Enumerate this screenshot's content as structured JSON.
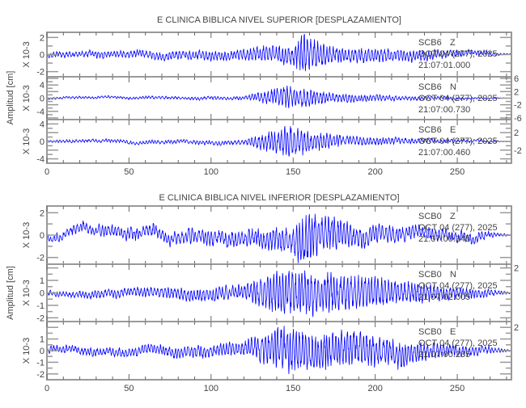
{
  "chart_data": [
    {
      "type": "line",
      "title": "E CLINICA BIBLICA NIVEL SUPERIOR [DESPLAZAMIENTO]",
      "ylabel": "Amplitud [cm]",
      "xlim": [
        0,
        283
      ],
      "xticks": [
        0,
        50,
        100,
        150,
        200,
        250
      ],
      "color": "#0000ff",
      "panels": [
        {
          "station": "SCB6",
          "component": "Z",
          "date": "OCT 04 (277), 2025",
          "time": "21:07:01.000",
          "scale_label": "X 10-3",
          "ylim": [
            -2.6,
            2.6
          ],
          "yticks": [
            -2,
            0,
            2
          ],
          "envelope": [
            [
              0,
              0.3
            ],
            [
              120,
              0.6
            ],
            [
              130,
              0.9
            ],
            [
              150,
              1.2
            ],
            [
              155,
              2.4
            ],
            [
              175,
              1.0
            ],
            [
              220,
              0.7
            ],
            [
              270,
              0.2
            ],
            [
              283,
              0.05
            ]
          ],
          "drift": 0.5,
          "seed": 11
        },
        {
          "station": "SCB6",
          "component": "N",
          "date": "OCT 04 (277), 2025",
          "time": "21:07:00.730",
          "scale_label": "X 10-3",
          "ylim": [
            -6.5,
            6.5
          ],
          "yticks": [
            -6,
            -4,
            -2,
            0,
            2,
            4,
            6
          ],
          "envelope": [
            [
              0,
              0.3
            ],
            [
              120,
              0.5
            ],
            [
              130,
              1.5
            ],
            [
              145,
              3.5
            ],
            [
              155,
              3.0
            ],
            [
              175,
              1.5
            ],
            [
              220,
              0.6
            ],
            [
              270,
              0.2
            ],
            [
              283,
              0.05
            ]
          ],
          "drift": 0.6,
          "seed": 23
        },
        {
          "station": "SCB6",
          "component": "E",
          "date": "OCT 04 (277), 2025",
          "time": "21:07:00.460",
          "scale_label": "X 10-3",
          "ylim": [
            -5,
            5
          ],
          "yticks": [
            -4,
            -2,
            0,
            2,
            4
          ],
          "envelope": [
            [
              0,
              0.3
            ],
            [
              120,
              0.5
            ],
            [
              130,
              1.8
            ],
            [
              148,
              3.8
            ],
            [
              160,
              2.5
            ],
            [
              180,
              1.2
            ],
            [
              220,
              0.6
            ],
            [
              270,
              0.2
            ],
            [
              283,
              0.05
            ]
          ],
          "drift": 0.6,
          "seed": 37
        }
      ]
    },
    {
      "type": "line",
      "title": "E CLINICA BIBLICA NIVEL INFERIOR [DESPLAZAMIENTO]",
      "ylabel": "Amplitud [cm]",
      "xlim": [
        0,
        283
      ],
      "xticks": [
        0,
        50,
        100,
        150,
        200,
        250
      ],
      "color": "#0000ff",
      "panels": [
        {
          "station": "SCB0",
          "component": "Z",
          "date": "OCT 04 (277), 2025",
          "time": "21:07:00.345",
          "scale_label": "X 10-3",
          "ylim": [
            -2.6,
            2.6
          ],
          "yticks": [
            -2,
            0,
            2
          ],
          "envelope": [
            [
              0,
              0.3
            ],
            [
              60,
              0.6
            ],
            [
              120,
              0.7
            ],
            [
              150,
              1.2
            ],
            [
              155,
              2.4
            ],
            [
              190,
              0.9
            ],
            [
              260,
              0.4
            ],
            [
              283,
              0.05
            ]
          ],
          "drift": 1.0,
          "seed": 51
        },
        {
          "station": "SCB0",
          "component": "N",
          "date": "OCT 04 (277), 2025",
          "time": "21:07:02.005",
          "scale_label": "X 10-3",
          "ylim": [
            -2.3,
            2.3
          ],
          "yticks": [
            -2,
            -1,
            0,
            1,
            2
          ],
          "envelope": [
            [
              0,
              0.2
            ],
            [
              60,
              0.4
            ],
            [
              120,
              0.6
            ],
            [
              140,
              1.8
            ],
            [
              160,
              1.9
            ],
            [
              190,
              1.4
            ],
            [
              240,
              0.6
            ],
            [
              270,
              0.3
            ],
            [
              283,
              0.05
            ]
          ],
          "drift": 0.4,
          "seed": 67
        },
        {
          "station": "SCB0",
          "component": "E",
          "date": "OCT 04 (277), 2025",
          "time": "21:07:00.235",
          "scale_label": "X 10-3",
          "ylim": [
            -2.5,
            2.5
          ],
          "yticks": [
            -2,
            -1,
            0,
            1,
            2
          ],
          "envelope": [
            [
              0,
              0.3
            ],
            [
              60,
              0.4
            ],
            [
              120,
              0.6
            ],
            [
              145,
              2.2
            ],
            [
              160,
              1.8
            ],
            [
              195,
              1.5
            ],
            [
              240,
              0.6
            ],
            [
              270,
              0.3
            ],
            [
              283,
              0.05
            ]
          ],
          "drift": 0.5,
          "seed": 79
        }
      ]
    }
  ]
}
